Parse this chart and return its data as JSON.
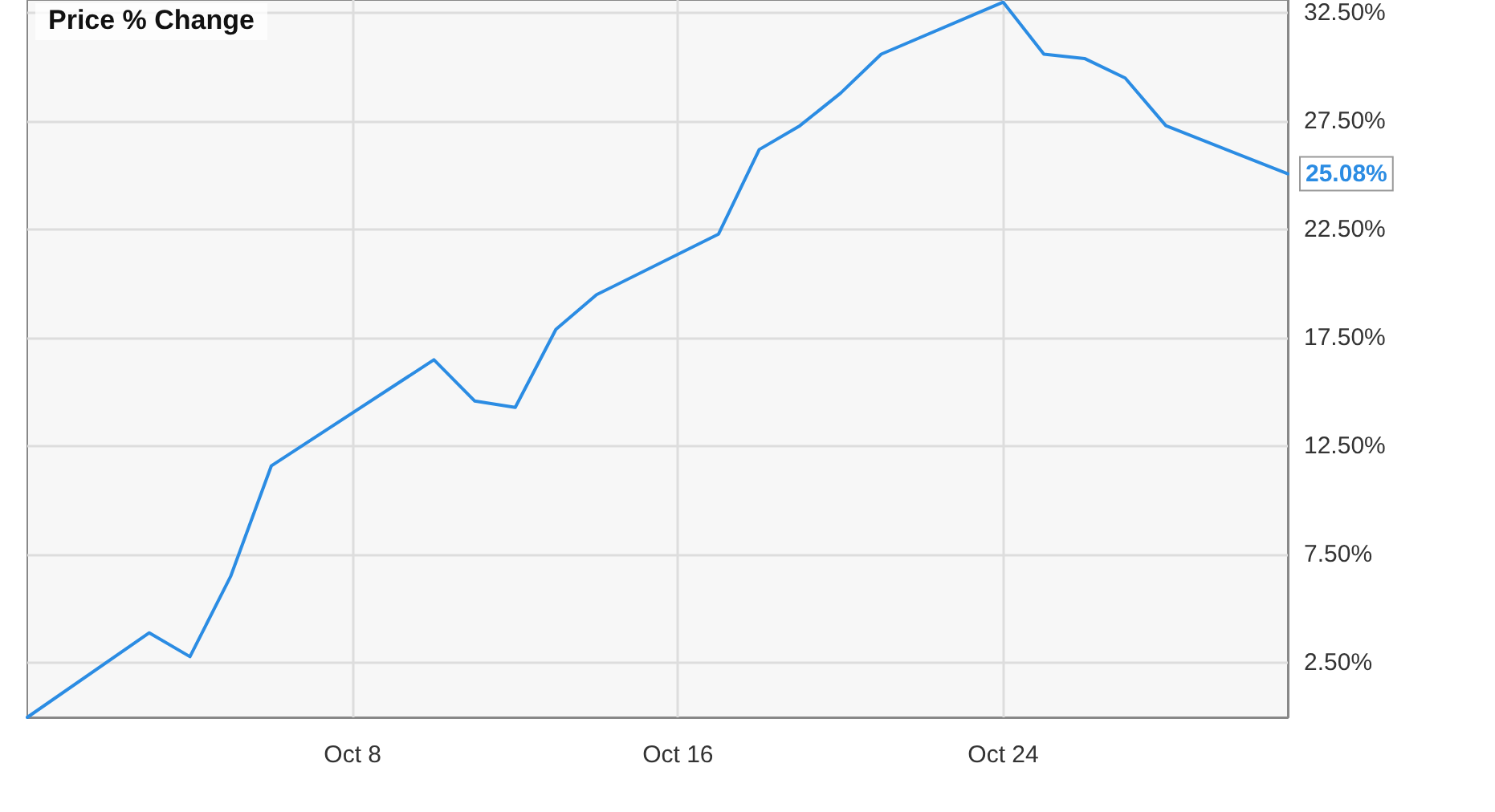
{
  "chart_data": {
    "type": "line",
    "title": "Price % Change",
    "x": [
      "--09-30",
      "--10-03",
      "--10-04",
      "--10-05",
      "--10-06",
      "--10-10",
      "--10-11",
      "--10-12",
      "--10-13",
      "--10-14",
      "--10-17",
      "--10-18",
      "--10-19",
      "--10-20",
      "--10-21",
      "--10-24",
      "--10-25",
      "--10-26",
      "--10-27",
      "--10-28",
      "--10-31"
    ],
    "series": [
      {
        "color": "#2b8ce3",
        "values": [
          0,
          3.9,
          2.8,
          6.5,
          11.6,
          16.5,
          14.6,
          14.3,
          17.9,
          19.5,
          22.3,
          26.2,
          27.3,
          28.8,
          30.6,
          33.0,
          30.6,
          30.4,
          29.5,
          27.3,
          25.08
        ],
        "value_labels": [
          null,
          null,
          null,
          null,
          null,
          null,
          null,
          null,
          null,
          null,
          null,
          null,
          null,
          null,
          null,
          null,
          null,
          null,
          null,
          null,
          "25.08%"
        ]
      }
    ],
    "xlim": [
      "--09-30",
      "--10-31"
    ],
    "xticks": [
      {
        "value": "--10-08",
        "label": "Oct 8"
      },
      {
        "value": "--10-16",
        "label": "Oct 16"
      },
      {
        "value": "--10-24",
        "label": "Oct 24"
      }
    ],
    "ylim": [
      0,
      33.1
    ],
    "yticks": [
      {
        "value": 2.5,
        "label": "2.50%"
      },
      {
        "value": 7.5,
        "label": "7.50%"
      },
      {
        "value": 12.5,
        "label": "12.50%"
      },
      {
        "value": 17.5,
        "label": "17.50%"
      },
      {
        "value": 22.5,
        "label": "22.50%"
      },
      {
        "value": 27.5,
        "label": "27.50%"
      },
      {
        "value": 32.5,
        "label": "32.50%"
      }
    ],
    "grid": true,
    "marker": "none",
    "line_style": "solid"
  }
}
